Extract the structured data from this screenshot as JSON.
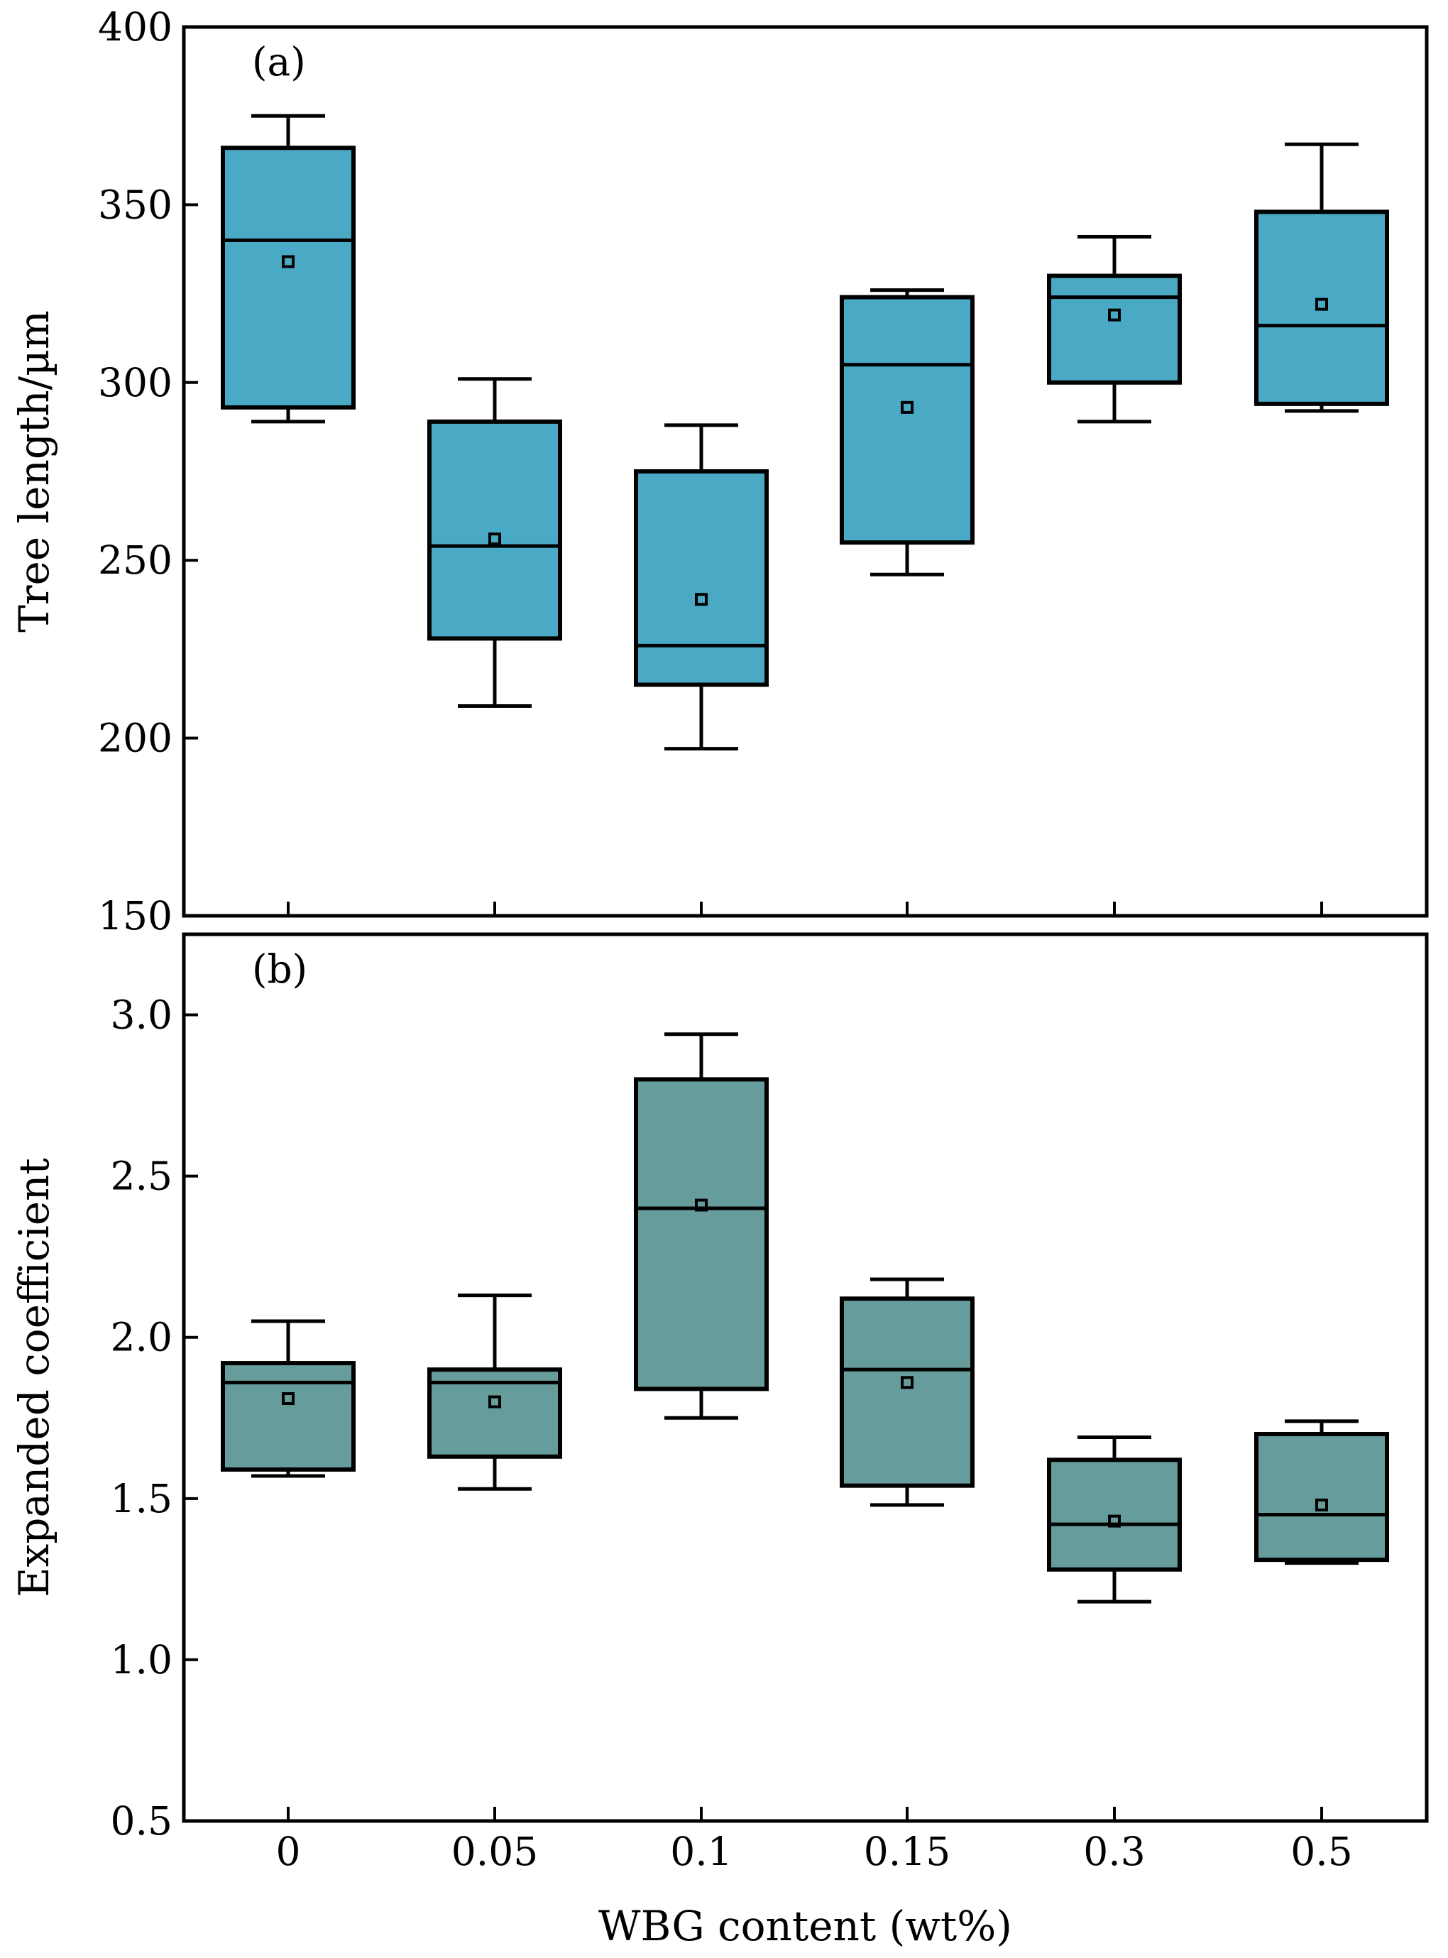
{
  "chart_data": [
    {
      "type": "box",
      "panel_label": "(a)",
      "ylabel": "Tree length/µm",
      "xlabel": "",
      "ylim": [
        150,
        400
      ],
      "yticks": [
        150,
        200,
        250,
        300,
        350,
        400
      ],
      "ytick_labels": [
        "150",
        "200",
        "250",
        "300",
        "350",
        "400"
      ],
      "categories": [
        "0",
        "0.05",
        "0.1",
        "0.15",
        "0.3",
        "0.5"
      ],
      "box_color": "#4aaac5",
      "boxes": [
        {
          "whisker_low": 289,
          "q1": 293,
          "median": 340,
          "q3": 366,
          "whisker_high": 375,
          "mean": 334
        },
        {
          "whisker_low": 209,
          "q1": 228,
          "median": 254,
          "q3": 289,
          "whisker_high": 301,
          "mean": 256
        },
        {
          "whisker_low": 197,
          "q1": 215,
          "median": 226,
          "q3": 275,
          "whisker_high": 288,
          "mean": 239
        },
        {
          "whisker_low": 246,
          "q1": 255,
          "median": 305,
          "q3": 324,
          "whisker_high": 326,
          "mean": 293
        },
        {
          "whisker_low": 289,
          "q1": 300,
          "median": 324,
          "q3": 330,
          "whisker_high": 341,
          "mean": 319
        },
        {
          "whisker_low": 292,
          "q1": 294,
          "median": 316,
          "q3": 348,
          "whisker_high": 367,
          "mean": 322
        }
      ]
    },
    {
      "type": "box",
      "panel_label": "(b)",
      "ylabel": "Expanded coefficient",
      "xlabel": "WBG content (wt%)",
      "ylim": [
        0.5,
        3.25
      ],
      "yticks": [
        0.5,
        1.0,
        1.5,
        2.0,
        2.5,
        3.0
      ],
      "ytick_labels": [
        "0.5",
        "1.0",
        "1.5",
        "2.0",
        "2.5",
        "3.0"
      ],
      "categories": [
        "0",
        "0.05",
        "0.1",
        "0.15",
        "0.3",
        "0.5"
      ],
      "box_color": "#669c9b",
      "boxes": [
        {
          "whisker_low": 1.57,
          "q1": 1.59,
          "median": 1.86,
          "q3": 1.92,
          "whisker_high": 2.05,
          "mean": 1.81
        },
        {
          "whisker_low": 1.53,
          "q1": 1.63,
          "median": 1.86,
          "q3": 1.9,
          "whisker_high": 2.13,
          "mean": 1.8
        },
        {
          "whisker_low": 1.75,
          "q1": 1.84,
          "median": 2.4,
          "q3": 2.8,
          "whisker_high": 2.94,
          "mean": 2.41
        },
        {
          "whisker_low": 1.48,
          "q1": 1.54,
          "median": 1.9,
          "q3": 2.12,
          "whisker_high": 2.18,
          "mean": 1.86
        },
        {
          "whisker_low": 1.18,
          "q1": 1.28,
          "median": 1.42,
          "q3": 1.62,
          "whisker_high": 1.69,
          "mean": 1.43
        },
        {
          "whisker_low": 1.3,
          "q1": 1.31,
          "median": 1.45,
          "q3": 1.7,
          "whisker_high": 1.74,
          "mean": 1.48
        }
      ]
    }
  ]
}
